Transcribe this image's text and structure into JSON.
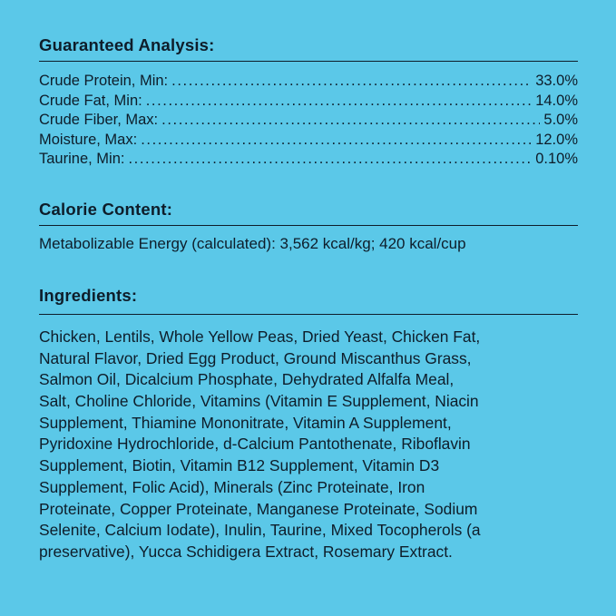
{
  "guaranteed_analysis": {
    "heading": "Guaranteed Analysis:",
    "rows": [
      {
        "label": "Crude Protein, Min:",
        "value": "33.0%"
      },
      {
        "label": "Crude Fat, Min:",
        "value": "14.0%"
      },
      {
        "label": "Crude Fiber, Max:",
        "value": "5.0%"
      },
      {
        "label": "Moisture, Max:",
        "value": "12.0%"
      },
      {
        "label": "Taurine, Min:",
        "value": "0.10%"
      }
    ]
  },
  "calorie_content": {
    "heading": "Calorie Content:",
    "text": "Metabolizable Energy (calculated): 3,562 kcal/kg; 420 kcal/cup"
  },
  "ingredients": {
    "heading": "Ingredients:",
    "lines": [
      "Chicken, Lentils, Whole Yellow Peas, Dried Yeast, Chicken Fat,",
      "Natural Flavor, Dried Egg Product, Ground Miscanthus Grass,",
      "Salmon Oil, Dicalcium Phosphate, Dehydrated Alfalfa Meal,",
      "Salt, Choline Chloride, Vitamins (Vitamin E Supplement, Niacin",
      "Supplement, Thiamine Mononitrate, Vitamin A Supplement,",
      "Pyridoxine Hydrochloride, d-Calcium Pantothenate, Riboflavin",
      "Supplement, Biotin, Vitamin B12 Supplement, Vitamin D3",
      "Supplement, Folic Acid), Minerals (Zinc Proteinate, Iron",
      "Proteinate, Copper Proteinate, Manganese Proteinate, Sodium",
      "Selenite, Calcium Iodate), Inulin, Taurine, Mixed Tocopherols (a",
      "preservative), Yucca Schidigera Extract, Rosemary Extract."
    ]
  },
  "colors": {
    "background": "#5bc8e8",
    "text": "#0e1d2a"
  }
}
